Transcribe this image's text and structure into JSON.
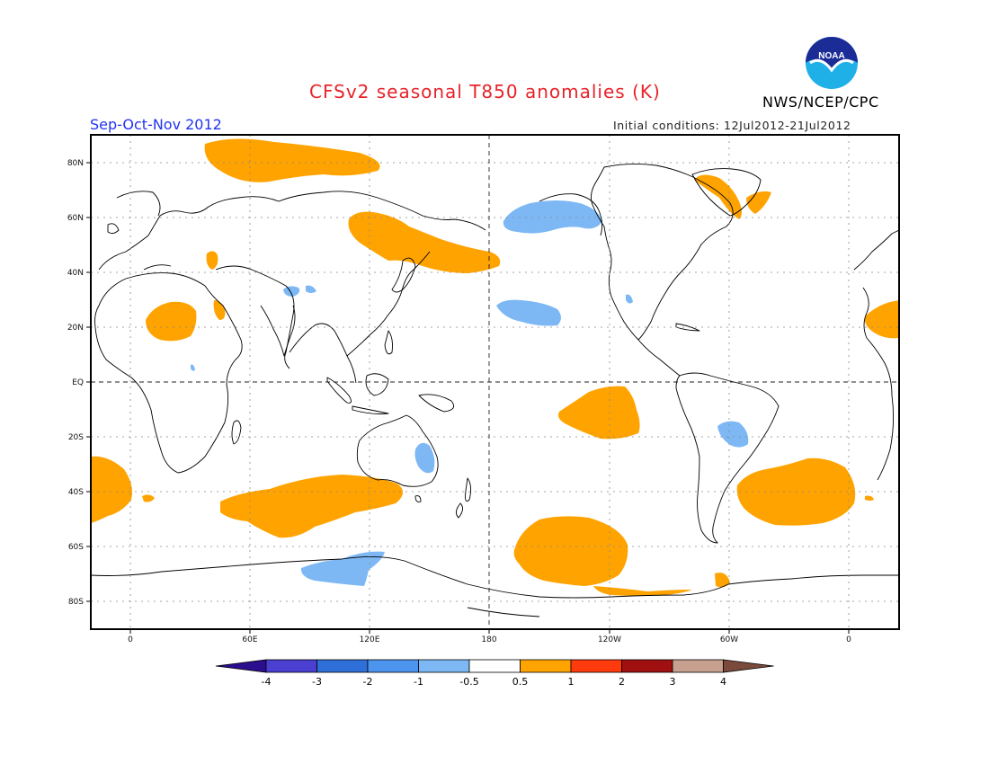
{
  "header": {
    "title": "CFSv2 seasonal T850 anomalies (K)",
    "agency": "NWS/NCEP/CPC",
    "season": "Sep-Oct-Nov 2012",
    "initial_conditions": "Initial conditions: 12Jul2012-21Jul2012",
    "logo_icon": "noaa-logo-icon",
    "logo_text": "NOAA"
  },
  "map": {
    "projection": "equirectangular, centered on 180",
    "lat_labels": [
      "80N",
      "60N",
      "40N",
      "20N",
      "EQ",
      "20S",
      "40S",
      "60S",
      "80S"
    ],
    "lon_labels": [
      "0",
      "60E",
      "120E",
      "180",
      "120W",
      "60W",
      "0"
    ],
    "anomaly_regions": [
      {
        "name": "Arctic north of Europe",
        "class": "warm",
        "value_range": "0.5 to 1"
      },
      {
        "name": "Barents/Kara Sea",
        "class": "warm",
        "value_range": "0.5 to 1"
      },
      {
        "name": "Northeast Asia / Sea of Okhotsk",
        "class": "warm",
        "value_range": "0.5 to 1"
      },
      {
        "name": "Arabian Peninsula",
        "class": "warm",
        "value_range": "0.5 to 1"
      },
      {
        "name": "South Atlantic off Africa",
        "class": "warm",
        "value_range": "0.5 to 1"
      },
      {
        "name": "Southern Indian Ocean",
        "class": "warm",
        "value_range": "0.5 to 1"
      },
      {
        "name": "Central South Pacific",
        "class": "warm",
        "value_range": "0.5 to 1"
      },
      {
        "name": "Southeast Pacific / Amundsen Sea",
        "class": "warm",
        "value_range": "0.5 to 1"
      },
      {
        "name": "South Atlantic off South America",
        "class": "warm",
        "value_range": "0.5 to 1"
      },
      {
        "name": "Greenland",
        "class": "warm",
        "value_range": "0.5 to 1"
      },
      {
        "name": "Eastern North Atlantic",
        "class": "warm",
        "value_range": "0.5 to 1"
      },
      {
        "name": "Gulf of Alaska / Bering",
        "class": "cool",
        "value_range": "-1 to -0.5"
      },
      {
        "name": "Subtropical North Pacific",
        "class": "cool",
        "value_range": "-1 to -0.5"
      },
      {
        "name": "Eastern Australia",
        "class": "cool",
        "value_range": "-1 to -0.5"
      },
      {
        "name": "Southern Brazil",
        "class": "cool",
        "value_range": "-1 to -0.5"
      },
      {
        "name": "Antarctic coast south of Australia",
        "class": "cool",
        "value_range": "-1 to -0.5"
      },
      {
        "name": "Tibetan Plateau",
        "class": "cool",
        "value_range": "-1 to -0.5"
      }
    ]
  },
  "colorbar": {
    "labels": [
      "-4",
      "-3",
      "-2",
      "-1",
      "-0.5",
      "0.5",
      "1",
      "2",
      "3",
      "4"
    ],
    "colors": [
      "#2a0e8e",
      "#4a3fd0",
      "#2f6fd8",
      "#4d94ee",
      "#7db8f5",
      "#ffffff",
      "#ffa300",
      "#ff3a0c",
      "#a01010",
      "#c7a08f",
      "#7a4a3c"
    ]
  }
}
